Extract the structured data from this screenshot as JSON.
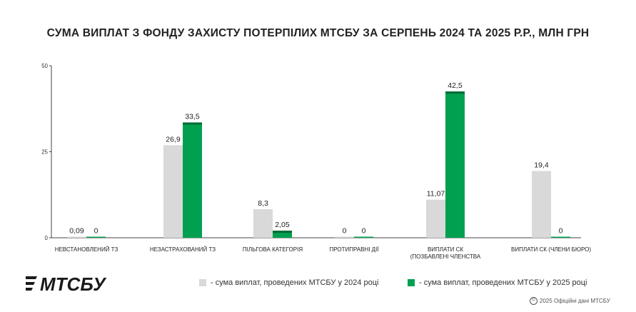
{
  "chart_data": {
    "type": "bar",
    "title": "СУМА ВИПЛАТ З ФОНДУ ЗАХИСТУ ПОТЕРПІЛИХ МТСБУ ЗА СЕРПЕНЬ 2024 ТА 2025 Р.Р., МЛН ГРН",
    "categories": [
      [
        "НЕВСТАНОВЛЕНИЙ ТЗ"
      ],
      [
        "НЕЗАСТРАХОВАНИЙ ТЗ"
      ],
      [
        "ПІЛЬГОВА КАТЕГОРІЯ"
      ],
      [
        "ПРОТИПРАВНІ ДІЇ"
      ],
      [
        "ВИПЛАТИ СК",
        "(ПОЗБАВЛЕНІ ЧЛЕНСТВА"
      ],
      [
        "ВИПЛАТИ СК (ЧЛЕНИ БЮРО)"
      ]
    ],
    "series": [
      {
        "name": "- сума виплат, проведених МТСБУ у 2024 році",
        "color": "#d9d9d9",
        "values": [
          0.09,
          26.9,
          8.3,
          0,
          11.07,
          19.4
        ],
        "labels": [
          "0,09",
          "26,9",
          "8,3",
          "0",
          "11,07",
          "19,4"
        ]
      },
      {
        "name": "- сума виплат, проведених МТСБУ у 2025 році",
        "color": "#00a050",
        "values": [
          0,
          33.5,
          2.05,
          0,
          42.5,
          0
        ],
        "labels": [
          "0",
          "33,5",
          "2,05",
          "0",
          "42,5",
          "0"
        ]
      }
    ],
    "yticks": [
      "0",
      "25",
      "50"
    ],
    "ylim": [
      0,
      50
    ],
    "legend": "bottom",
    "grid": false
  },
  "brand": {
    "logo_text": "МТСБУ",
    "copyright": "2025 Офіційні дані МТСБУ"
  }
}
